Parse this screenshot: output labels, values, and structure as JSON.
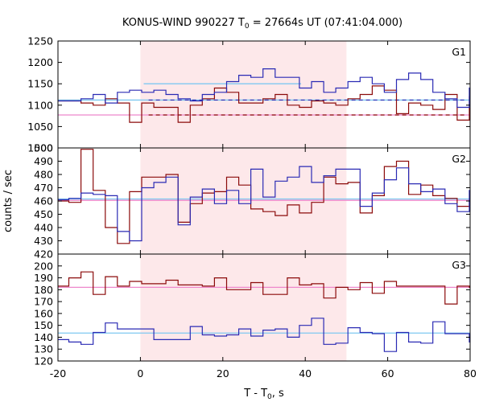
{
  "chart_data": {
    "type": "line",
    "title": "KONUS-WIND 990227 T",
    "title_sub": "0",
    "title_rest": " = 27664s UT (07:41:04.000)",
    "xlabel": "T - T",
    "xlabel_sub": "0",
    "xlabel_rest": ", s",
    "ylabel": "counts / sec",
    "xlim": [
      -20,
      80
    ],
    "x_ticks": [
      "-20",
      "0",
      "20",
      "40",
      "60",
      "80"
    ],
    "highlight": {
      "x0": 0,
      "x1": 50,
      "color": "#fde8ea"
    },
    "colors": {
      "red": "#8b0a0a",
      "blue": "#2a2ab4",
      "pink": "#ee88cc",
      "cyan": "#7ec8f0"
    },
    "panels": [
      {
        "label": "G1",
        "ylim": [
          1000,
          1250
        ],
        "y_ticks": [
          "1000",
          "1050",
          "1100",
          "1150",
          "1200",
          "1250"
        ],
        "step": 2.944,
        "x_start": -20.3,
        "series": [
          {
            "color": "red",
            "values": [
              1110,
              1110,
              1105,
              1100,
              1115,
              1105,
              1060,
              1105,
              1095,
              1095,
              1060,
              1100,
              1115,
              1140,
              1130,
              1105,
              1105,
              1115,
              1125,
              1100,
              1095,
              1110,
              1105,
              1100,
              1115,
              1125,
              1145,
              1135,
              1080,
              1105,
              1100,
              1090,
              1125,
              1065,
              1120,
              1080,
              1060,
              1090,
              1085,
              1090,
              1070
            ]
          },
          {
            "color": "blue",
            "values": [
              1110,
              1110,
              1115,
              1125,
              1105,
              1130,
              1135,
              1130,
              1135,
              1125,
              1115,
              1110,
              1125,
              1130,
              1155,
              1170,
              1165,
              1185,
              1165,
              1165,
              1140,
              1155,
              1130,
              1140,
              1155,
              1165,
              1150,
              1130,
              1160,
              1175,
              1160,
              1130,
              1115,
              1095,
              1140,
              1125,
              1095,
              1115,
              1110,
              1120
            ]
          }
        ],
        "levels": [
          {
            "color": "cyan",
            "x0": -20,
            "x1": 80,
            "y": 1112,
            "dash": false
          },
          {
            "color": "pink",
            "x0": -20,
            "x1": 80,
            "y": 1077,
            "dash": false
          },
          {
            "color": "cyan",
            "x0": 0.8,
            "x1": 39,
            "y": 1150,
            "dash": false
          },
          {
            "color": "blue",
            "x0": 2,
            "x1": 79,
            "y": 1112,
            "dash": true
          },
          {
            "color": "red",
            "x0": 2,
            "x1": 79,
            "y": 1077,
            "dash": true
          }
        ]
      },
      {
        "label": "G2",
        "ylim": [
          420,
          500
        ],
        "y_ticks": [
          "420",
          "430",
          "440",
          "450",
          "460",
          "470",
          "480",
          "490",
          "500"
        ],
        "step": 2.944,
        "x_start": -20.3,
        "series": [
          {
            "color": "red",
            "values": [
              460,
              459,
              499,
              468,
              440,
              428,
              467,
              478,
              478,
              480,
              444,
              458,
              466,
              467,
              478,
              472,
              454,
              452,
              449,
              457,
              451,
              459,
              478,
              473,
              474,
              451,
              464,
              486,
              490,
              465,
              472,
              464,
              462,
              456,
              460,
              457,
              455,
              464,
              452,
              470,
              481
            ]
          },
          {
            "color": "blue",
            "values": [
              461,
              462,
              466,
              465,
              464,
              437,
              430,
              470,
              474,
              478,
              442,
              463,
              469,
              458,
              468,
              458,
              484,
              463,
              475,
              478,
              486,
              474,
              479,
              484,
              484,
              456,
              466,
              476,
              485,
              473,
              467,
              469,
              458,
              452,
              468,
              471,
              459,
              467,
              463,
              462,
              458
            ]
          }
        ],
        "levels": [
          {
            "color": "cyan",
            "x0": -20,
            "x1": 80,
            "y": 461.5,
            "dash": false
          },
          {
            "color": "pink",
            "x0": -20,
            "x1": 80,
            "y": 460.5,
            "dash": false
          }
        ]
      },
      {
        "label": "G3",
        "ylim": [
          120,
          210
        ],
        "y_ticks": [
          "120",
          "130",
          "140",
          "150",
          "160",
          "170",
          "180",
          "190",
          "200"
        ],
        "step": 2.944,
        "x_start": -20.3,
        "series": [
          {
            "color": "red",
            "values": [
              183,
              190,
              195,
              176,
              191,
              183,
              187,
              185,
              185,
              188,
              184,
              184,
              183,
              190,
              180,
              180,
              186,
              176,
              176,
              190,
              184,
              185,
              173,
              182,
              180,
              186,
              177,
              187,
              183,
              183,
              183,
              183,
              168,
              183,
              182,
              182,
              185,
              186,
              184,
              184,
              187
            ]
          },
          {
            "color": "blue",
            "values": [
              138,
              136,
              134,
              144,
              152,
              147,
              147,
              147,
              138,
              138,
              138,
              149,
              142,
              141,
              142,
              147,
              141,
              146,
              147,
              140,
              150,
              156,
              134,
              135,
              148,
              144,
              143,
              128,
              144,
              136,
              135,
              153,
              143,
              143,
              136,
              146,
              136,
              144,
              129,
              145,
              142
            ]
          }
        ],
        "levels": [
          {
            "color": "cyan",
            "x0": -20,
            "x1": 80,
            "y": 143.5,
            "dash": false
          },
          {
            "color": "pink",
            "x0": -20,
            "x1": 80,
            "y": 182,
            "dash": false
          }
        ]
      }
    ]
  }
}
